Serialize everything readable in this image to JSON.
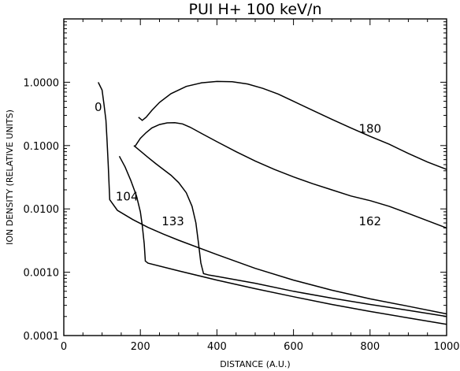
{
  "chart_data": {
    "type": "line",
    "title": "PUI H+ 100 keV/n",
    "xlabel": "DISTANCE (A.U.)",
    "ylabel": "ION DENSITY (RELATIVE UNITS)",
    "xlim": [
      0,
      1000
    ],
    "ylim": [
      0.0001,
      10
    ],
    "yscale": "log",
    "grid": false,
    "x_ticks": [
      0,
      200,
      400,
      600,
      800,
      1000
    ],
    "x_tick_labels": [
      "0",
      "200",
      "400",
      "600",
      "800",
      "1000"
    ],
    "y_ticks": [
      0.0001,
      0.001,
      0.01,
      0.1,
      1
    ],
    "y_tick_labels": [
      "0.0001",
      "0.0010",
      "0.0100",
      "0.1000",
      "1.0000"
    ],
    "series": [
      {
        "name": "0",
        "label_at": [
          90,
          0.35
        ],
        "x": [
          90,
          100,
          105,
          110,
          113,
          116,
          120,
          140,
          180,
          220,
          260,
          300,
          400,
          500,
          600,
          700,
          800,
          900,
          1000
        ],
        "y": [
          1.0,
          0.75,
          0.45,
          0.25,
          0.12,
          0.05,
          0.014,
          0.0095,
          0.0068,
          0.0051,
          0.004,
          0.0032,
          0.0019,
          0.00115,
          0.00075,
          0.00052,
          0.00038,
          0.00029,
          0.00022
        ]
      },
      {
        "name": "104",
        "label_at": [
          165,
          0.0135
        ],
        "x": [
          145,
          160,
          175,
          190,
          200,
          205,
          210,
          213,
          220,
          300,
          400,
          500,
          600,
          700,
          800,
          900,
          1000
        ],
        "y": [
          0.068,
          0.046,
          0.028,
          0.016,
          0.009,
          0.0055,
          0.0028,
          0.0015,
          0.00139,
          0.00105,
          0.00075,
          0.00055,
          0.00041,
          0.00031,
          0.00024,
          0.00019,
          0.00015
        ]
      },
      {
        "name": "133",
        "label_at": [
          285,
          0.0055
        ],
        "x": [
          183,
          200,
          220,
          240,
          260,
          280,
          300,
          320,
          335,
          345,
          352,
          358,
          365,
          380,
          400,
          500,
          600,
          700,
          800,
          900,
          1000
        ],
        "y": [
          0.1,
          0.082,
          0.065,
          0.052,
          0.042,
          0.034,
          0.026,
          0.018,
          0.011,
          0.006,
          0.0028,
          0.0014,
          0.00095,
          0.0009,
          0.00086,
          0.00067,
          0.0005,
          0.00039,
          0.00031,
          0.00025,
          0.0002
        ]
      },
      {
        "name": "162",
        "label_at": [
          800,
          0.0055
        ],
        "x": [
          185,
          200,
          215,
          230,
          250,
          270,
          290,
          310,
          330,
          360,
          400,
          450,
          500,
          550,
          600,
          650,
          700,
          750,
          800,
          850,
          900,
          950,
          1000
        ],
        "y": [
          0.095,
          0.13,
          0.16,
          0.19,
          0.215,
          0.228,
          0.23,
          0.22,
          0.195,
          0.155,
          0.115,
          0.08,
          0.057,
          0.042,
          0.032,
          0.025,
          0.02,
          0.016,
          0.0135,
          0.011,
          0.0085,
          0.0065,
          0.005
        ]
      },
      {
        "name": "180",
        "label_at": [
          800,
          0.16
        ],
        "x": [
          195,
          205,
          215,
          230,
          250,
          280,
          320,
          360,
          400,
          440,
          480,
          520,
          560,
          600,
          650,
          700,
          750,
          800,
          850,
          900,
          950,
          1000
        ],
        "y": [
          0.28,
          0.25,
          0.28,
          0.36,
          0.48,
          0.66,
          0.86,
          0.98,
          1.03,
          1.02,
          0.94,
          0.8,
          0.65,
          0.5,
          0.36,
          0.26,
          0.19,
          0.14,
          0.105,
          0.075,
          0.055,
          0.042
        ]
      }
    ]
  }
}
